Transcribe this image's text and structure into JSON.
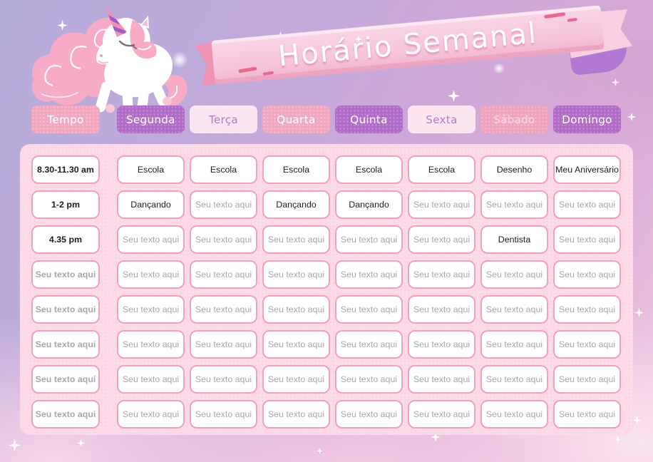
{
  "title": "Horário Semanal",
  "header": {
    "columns": [
      {
        "key": "tempo",
        "label": "Tempo",
        "variant": "pink"
      },
      {
        "key": "segunda",
        "label": "Segunda",
        "variant": "purple"
      },
      {
        "key": "terca",
        "label": "Terça",
        "variant": "light"
      },
      {
        "key": "quarta",
        "label": "Quarta",
        "variant": "pink"
      },
      {
        "key": "quinta",
        "label": "Quinta",
        "variant": "purple"
      },
      {
        "key": "sexta",
        "label": "Sexta",
        "variant": "light"
      },
      {
        "key": "sabado",
        "label": "Sábado",
        "variant": "pink-low"
      },
      {
        "key": "domingo",
        "label": "Domingo",
        "variant": "purple"
      }
    ]
  },
  "schedule": {
    "placeholder": "Seu texto aqui",
    "rows": [
      [
        {
          "t": "8.30-11.30 am"
        },
        {
          "t": "Escola"
        },
        {
          "t": "Escola"
        },
        {
          "t": "Escola"
        },
        {
          "t": "Escola"
        },
        {
          "t": "Escola"
        },
        {
          "t": "Desenho"
        },
        {
          "t": "Meu Aniversário"
        }
      ],
      [
        {
          "t": "1-2 pm"
        },
        {
          "t": "Dançando"
        },
        {
          "ph": true
        },
        {
          "t": "Dançando"
        },
        {
          "t": "Dançando"
        },
        {
          "ph": true
        },
        {
          "ph": true
        },
        {
          "ph": true
        }
      ],
      [
        {
          "t": "4.35 pm"
        },
        {
          "ph": true
        },
        {
          "ph": true
        },
        {
          "ph": true
        },
        {
          "ph": true
        },
        {
          "ph": true
        },
        {
          "t": "Dentista"
        },
        {
          "ph": true
        }
      ],
      [
        {
          "ph": true
        },
        {
          "ph": true
        },
        {
          "ph": true
        },
        {
          "ph": true
        },
        {
          "ph": true
        },
        {
          "ph": true
        },
        {
          "ph": true
        },
        {
          "ph": true
        }
      ],
      [
        {
          "ph": true
        },
        {
          "ph": true
        },
        {
          "ph": true
        },
        {
          "ph": true
        },
        {
          "ph": true
        },
        {
          "ph": true
        },
        {
          "ph": true
        },
        {
          "ph": true
        }
      ],
      [
        {
          "ph": true
        },
        {
          "ph": true
        },
        {
          "ph": true
        },
        {
          "ph": true
        },
        {
          "ph": true
        },
        {
          "ph": true
        },
        {
          "ph": true
        },
        {
          "ph": true
        }
      ],
      [
        {
          "ph": true
        },
        {
          "ph": true
        },
        {
          "ph": true
        },
        {
          "ph": true
        },
        {
          "ph": true
        },
        {
          "ph": true
        },
        {
          "ph": true
        },
        {
          "ph": true
        }
      ],
      [
        {
          "ph": true
        },
        {
          "ph": true
        },
        {
          "ph": true
        },
        {
          "ph": true
        },
        {
          "ph": true
        },
        {
          "ph": true
        },
        {
          "ph": true
        },
        {
          "ph": true
        }
      ]
    ]
  },
  "colors": {
    "accent_pink": "#f2a7c1",
    "accent_purple": "#b06ac8",
    "light_pink_button": "#fce4f1",
    "panel_background": "#fcd7e7",
    "cell_border": "#f5a0bb",
    "ribbon": "#f6c3da",
    "ribbon_fold_purple": "#b377d4"
  },
  "icons": {
    "unicorn": "unicorn-illustration",
    "sparkle": "four-point-star"
  }
}
